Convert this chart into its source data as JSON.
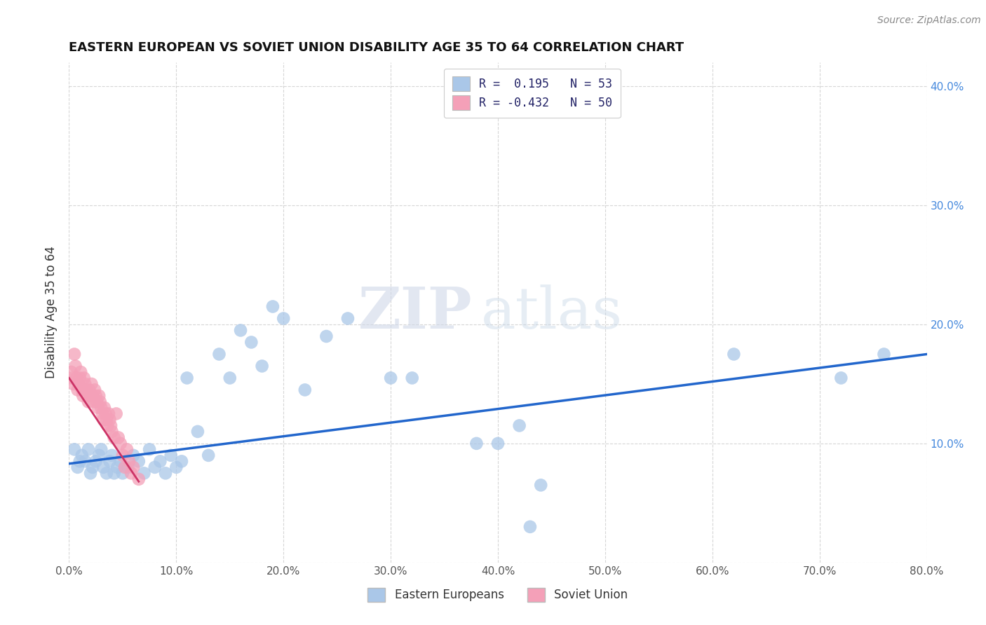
{
  "title": "EASTERN EUROPEAN VS SOVIET UNION DISABILITY AGE 35 TO 64 CORRELATION CHART",
  "source": "Source: ZipAtlas.com",
  "ylabel": "Disability Age 35 to 64",
  "xlim": [
    0.0,
    0.8
  ],
  "ylim": [
    0.0,
    0.42
  ],
  "xticks": [
    0.0,
    0.1,
    0.2,
    0.3,
    0.4,
    0.5,
    0.6,
    0.7,
    0.8
  ],
  "xticklabels": [
    "0.0%",
    "10.0%",
    "20.0%",
    "30.0%",
    "40.0%",
    "50.0%",
    "60.0%",
    "70.0%",
    "80.0%"
  ],
  "yticks": [
    0.0,
    0.1,
    0.2,
    0.3,
    0.4
  ],
  "yticklabels_right": [
    "",
    "10.0%",
    "20.0%",
    "30.0%",
    "40.0%"
  ],
  "legend_r1": "R =  0.195",
  "legend_n1": "N = 53",
  "legend_r2": "R = -0.432",
  "legend_n2": "N = 50",
  "color_eastern": "#aac7e8",
  "color_soviet": "#f4a0b8",
  "color_line_eastern": "#2266cc",
  "color_line_soviet": "#cc3366",
  "title_color": "#111111",
  "axis_label_color": "#333333",
  "tick_color_right": "#4488dd",
  "tick_color_bottom": "#555555",
  "grid_color": "#cccccc",
  "eastern_x": [
    0.005,
    0.008,
    0.01,
    0.012,
    0.015,
    0.018,
    0.02,
    0.022,
    0.025,
    0.028,
    0.03,
    0.032,
    0.035,
    0.038,
    0.04,
    0.042,
    0.045,
    0.048,
    0.05,
    0.055,
    0.06,
    0.065,
    0.07,
    0.075,
    0.08,
    0.085,
    0.09,
    0.095,
    0.1,
    0.105,
    0.11,
    0.12,
    0.13,
    0.14,
    0.15,
    0.16,
    0.17,
    0.18,
    0.19,
    0.2,
    0.22,
    0.24,
    0.26,
    0.3,
    0.32,
    0.38,
    0.4,
    0.42,
    0.43,
    0.44,
    0.62,
    0.72,
    0.76
  ],
  "eastern_y": [
    0.095,
    0.08,
    0.085,
    0.09,
    0.085,
    0.095,
    0.075,
    0.08,
    0.085,
    0.09,
    0.095,
    0.08,
    0.075,
    0.085,
    0.09,
    0.075,
    0.08,
    0.085,
    0.075,
    0.08,
    0.09,
    0.085,
    0.075,
    0.095,
    0.08,
    0.085,
    0.075,
    0.09,
    0.08,
    0.085,
    0.155,
    0.11,
    0.09,
    0.175,
    0.155,
    0.195,
    0.185,
    0.165,
    0.215,
    0.205,
    0.145,
    0.19,
    0.205,
    0.155,
    0.155,
    0.1,
    0.1,
    0.115,
    0.03,
    0.065,
    0.175,
    0.155,
    0.175
  ],
  "soviet_x": [
    0.002,
    0.003,
    0.004,
    0.005,
    0.006,
    0.007,
    0.008,
    0.009,
    0.01,
    0.011,
    0.012,
    0.013,
    0.014,
    0.015,
    0.016,
    0.017,
    0.018,
    0.019,
    0.02,
    0.021,
    0.022,
    0.023,
    0.024,
    0.025,
    0.026,
    0.027,
    0.028,
    0.029,
    0.03,
    0.031,
    0.032,
    0.033,
    0.034,
    0.035,
    0.036,
    0.037,
    0.038,
    0.039,
    0.04,
    0.042,
    0.044,
    0.046,
    0.048,
    0.05,
    0.052,
    0.054,
    0.056,
    0.058,
    0.06,
    0.065
  ],
  "soviet_y": [
    0.16,
    0.155,
    0.15,
    0.175,
    0.165,
    0.155,
    0.145,
    0.15,
    0.155,
    0.16,
    0.145,
    0.14,
    0.155,
    0.15,
    0.145,
    0.14,
    0.135,
    0.145,
    0.14,
    0.15,
    0.14,
    0.135,
    0.145,
    0.14,
    0.135,
    0.13,
    0.14,
    0.135,
    0.13,
    0.125,
    0.12,
    0.13,
    0.125,
    0.12,
    0.115,
    0.125,
    0.12,
    0.115,
    0.11,
    0.105,
    0.125,
    0.105,
    0.1,
    0.09,
    0.08,
    0.095,
    0.085,
    0.075,
    0.08,
    0.07
  ],
  "eastern_line_x": [
    0.0,
    0.8
  ],
  "eastern_line_y": [
    0.083,
    0.175
  ],
  "soviet_line_x": [
    0.0,
    0.065
  ],
  "soviet_line_y": [
    0.155,
    0.068
  ]
}
